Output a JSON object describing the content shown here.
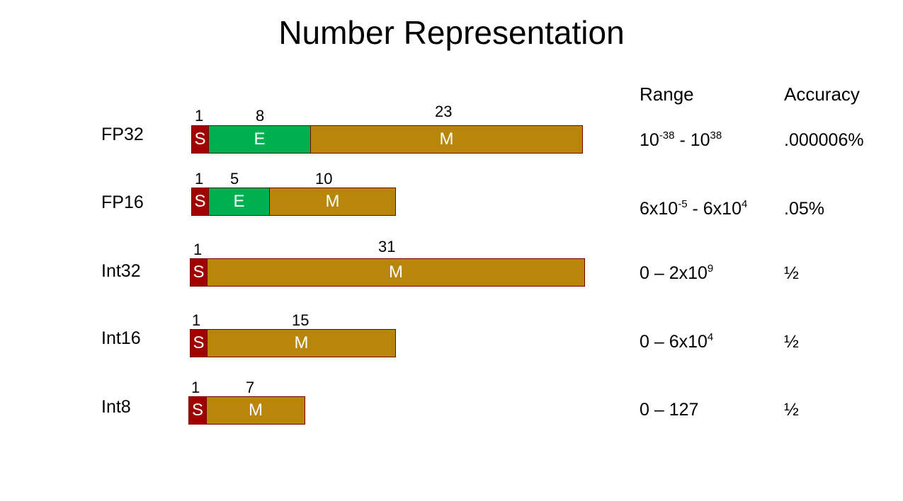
{
  "title": "Number Representation",
  "columns": {
    "range": "Range",
    "accuracy": "Accuracy"
  },
  "segment_colors": {
    "sign": "#a00000",
    "exponent": "#00b050",
    "mantissa": "#b8860b"
  },
  "formats": [
    {
      "label": "FP32",
      "bits": {
        "sign": "1",
        "exponent": "8",
        "mantissa": "23"
      },
      "segments": {
        "sign": "S",
        "exponent": "E",
        "mantissa": "M"
      },
      "range": {
        "a_base": "10",
        "a_exp": "-38",
        "sep": " - ",
        "b_base": "10",
        "b_exp": "38"
      },
      "accuracy": ".000006%"
    },
    {
      "label": "FP16",
      "bits": {
        "sign": "1",
        "exponent": "5",
        "mantissa": "10"
      },
      "segments": {
        "sign": "S",
        "exponent": "E",
        "mantissa": "M"
      },
      "range": {
        "a_base": "6x10",
        "a_exp": "-5",
        "sep": " - ",
        "b_base": "6x10",
        "b_exp": "4"
      },
      "accuracy": ".05%"
    },
    {
      "label": "Int32",
      "bits": {
        "sign": "1",
        "mantissa": "31"
      },
      "segments": {
        "sign": "S",
        "mantissa": "M"
      },
      "range": {
        "prefix": "0 – 2x10",
        "exp": "9"
      },
      "accuracy": "½"
    },
    {
      "label": "Int16",
      "bits": {
        "sign": "1",
        "mantissa": "15"
      },
      "segments": {
        "sign": "S",
        "mantissa": "M"
      },
      "range": {
        "prefix": "0 – 6x10",
        "exp": "4"
      },
      "accuracy": "½"
    },
    {
      "label": "Int8",
      "bits": {
        "sign": "1",
        "mantissa": "7"
      },
      "segments": {
        "sign": "S",
        "mantissa": "M"
      },
      "range": {
        "prefix": "0 – 127"
      },
      "accuracy": "½"
    }
  ]
}
